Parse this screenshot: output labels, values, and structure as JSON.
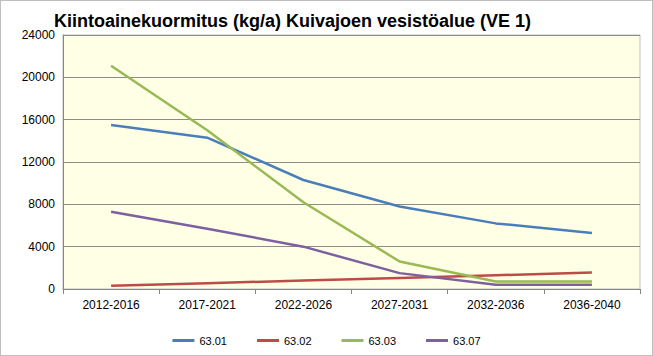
{
  "chart_data": {
    "type": "line",
    "title": "Kiintoainekuormitus (kg/a) Kuivajoen vesistöalue (VE 1)",
    "categories": [
      "2012-2016",
      "2017-2021",
      "2022-2026",
      "2027-2031",
      "2032-2036",
      "2036-2040"
    ],
    "series": [
      {
        "name": "63.01",
        "color": "#4a7ebb",
        "values": [
          15500,
          14300,
          10300,
          7800,
          6200,
          5300
        ]
      },
      {
        "name": "63.02",
        "color": "#be4b48",
        "values": [
          300,
          550,
          800,
          1050,
          1300,
          1550
        ]
      },
      {
        "name": "63.03",
        "color": "#98b954",
        "values": [
          21100,
          15000,
          8200,
          2600,
          700,
          700
        ]
      },
      {
        "name": "63.07",
        "color": "#7d60a0",
        "values": [
          7300,
          5700,
          4000,
          1500,
          400,
          400
        ]
      }
    ],
    "ylim": [
      0,
      24000
    ],
    "yticks": [
      0,
      4000,
      8000,
      12000,
      16000,
      20000,
      24000
    ],
    "grid": true,
    "legend": "bottom",
    "marker": "none",
    "line_style": "solid"
  }
}
